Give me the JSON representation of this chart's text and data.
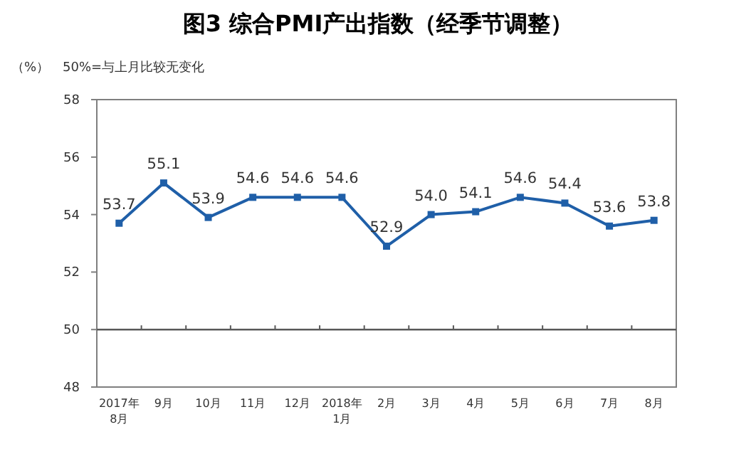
{
  "chart_data": {
    "type": "line",
    "title": "图3 综合PMI产出指数（经季节调整）",
    "ylabel": "（%）",
    "annotations": [
      "50%=与上月比较无变化"
    ],
    "categories": [
      "2017年\n8月",
      "9月",
      "10月",
      "11月",
      "12月",
      "2018年\n1月",
      "2月",
      "3月",
      "4月",
      "5月",
      "6月",
      "7月",
      "8月"
    ],
    "values": [
      53.7,
      55.1,
      53.9,
      54.6,
      54.6,
      54.6,
      52.9,
      54.0,
      54.1,
      54.6,
      54.4,
      53.6,
      53.8
    ],
    "value_labels": [
      "53.7",
      "55.1",
      "53.9",
      "54.6",
      "54.6",
      "54.6",
      "52.9",
      "54.0",
      "54.1",
      "54.6",
      "54.4",
      "53.6",
      "53.8"
    ],
    "color": "#1f5fa8",
    "marker": "square",
    "line_style": "solid",
    "ylim": [
      48,
      58
    ],
    "yticks": [
      48,
      50,
      52,
      54,
      56,
      58
    ],
    "ref_lines": [
      {
        "axis": "y",
        "value": 50,
        "color": "#595959"
      }
    ]
  }
}
